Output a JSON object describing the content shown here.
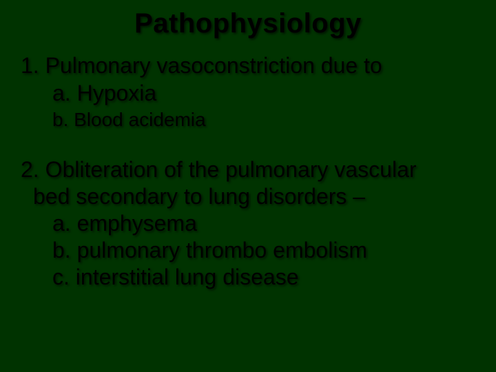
{
  "slide": {
    "background_color": "#003300",
    "text_color": "#000000",
    "title": "Pathophysiology",
    "title_fontsize": 40,
    "body_fontsize": 32,
    "small_fontsize": 28,
    "point1": {
      "heading": "1. Pulmonary vasoconstriction due to",
      "a": "a. Hypoxia",
      "b": "b. Blood acidemia"
    },
    "point2": {
      "line1": "2. Obliteration of the pulmonary vascular",
      "line2": "bed secondary to lung disorders –",
      "a": "a. emphysema",
      "b": "b. pulmonary thrombo embolism",
      "c": "c. interstitial lung disease"
    }
  }
}
